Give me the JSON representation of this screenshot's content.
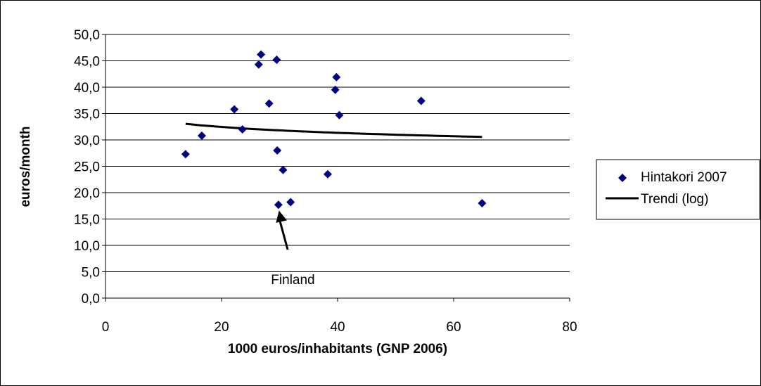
{
  "chart_data": {
    "type": "scatter",
    "title": "",
    "xlabel": "1000 euros/inhabitants (GNP 2006)",
    "ylabel": "euros/month",
    "xlim": [
      0,
      80
    ],
    "ylim": [
      0,
      50
    ],
    "x_ticks": [
      "0",
      "20",
      "40",
      "60",
      "80"
    ],
    "y_ticks": [
      "0,0",
      "5,0",
      "10,0",
      "15,0",
      "20,0",
      "25,0",
      "30,0",
      "35,0",
      "40,0",
      "45,0",
      "50,0"
    ],
    "grid": "horizontal",
    "legend_position": "right",
    "series": [
      {
        "name": "Hintakori 2007",
        "marker": "diamond",
        "color": "#00007F",
        "points": [
          [
            13.8,
            27.3
          ],
          [
            16.6,
            30.8
          ],
          [
            22.2,
            35.8
          ],
          [
            23.6,
            32.0
          ],
          [
            26.4,
            44.3
          ],
          [
            26.8,
            46.2
          ],
          [
            28.2,
            36.9
          ],
          [
            29.5,
            45.2
          ],
          [
            29.6,
            28.0
          ],
          [
            29.8,
            17.7
          ],
          [
            30.6,
            24.3
          ],
          [
            31.9,
            18.2
          ],
          [
            38.3,
            23.5
          ],
          [
            39.6,
            39.5
          ],
          [
            39.8,
            41.9
          ],
          [
            40.3,
            34.7
          ],
          [
            54.4,
            37.4
          ],
          [
            64.9,
            18.0
          ]
        ]
      },
      {
        "name": "Trendi (log)",
        "line": true,
        "color": "#000000",
        "trend": {
          "a": 37.25,
          "b": -1.6,
          "x_min": 13.8,
          "x_max": 64.9
        }
      }
    ],
    "annotations": [
      {
        "text": "Finland",
        "x": 32.3,
        "y": 3.2,
        "arrow_from": [
          31.4,
          9.2
        ],
        "arrow_to": [
          29.9,
          16.6
        ]
      }
    ]
  }
}
